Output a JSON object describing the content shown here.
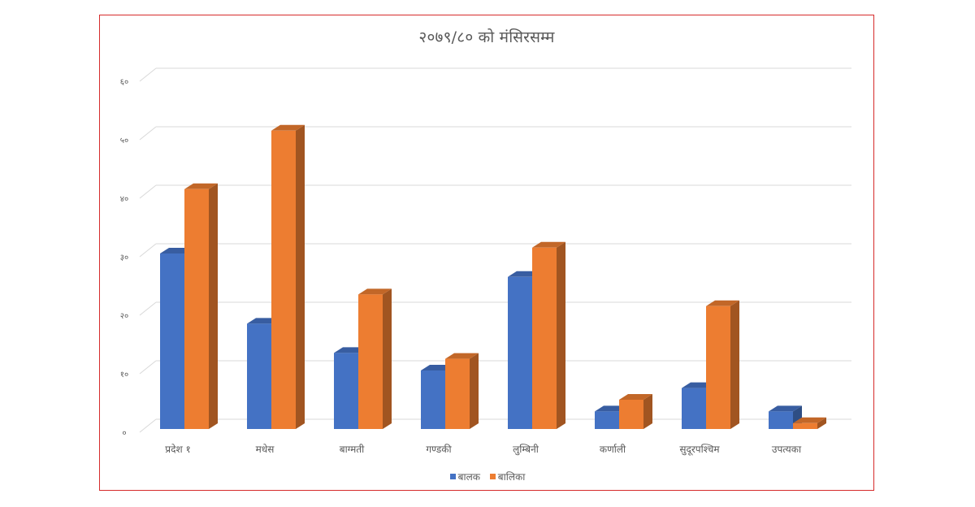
{
  "chart_data": {
    "type": "bar",
    "title": "२०७९/८० को मंसिरसम्म",
    "categories": [
      "प्रदेश १",
      "मधेस",
      "बाग्मती",
      "गण्डकी",
      "लुम्बिनी",
      "कर्णाली",
      "सुदूरपश्चिम",
      "उपत्यका"
    ],
    "series": [
      {
        "name": "बालक",
        "color": "#4472C4",
        "values": [
          30,
          18,
          13,
          10,
          26,
          3,
          7,
          3
        ]
      },
      {
        "name": "बालिका",
        "color": "#ED7D31",
        "values": [
          41,
          51,
          23,
          12,
          31,
          5,
          21,
          1
        ]
      }
    ],
    "ylim": [
      0,
      60
    ],
    "y_ticks": [
      0,
      10,
      20,
      30,
      40,
      50,
      60
    ],
    "y_tick_labels": [
      "०",
      "१०",
      "२०",
      "३०",
      "४०",
      "५०",
      "६०"
    ],
    "xlabel": "",
    "ylabel": "",
    "grid": true,
    "legend_position": "bottom",
    "style": "3d-column"
  }
}
